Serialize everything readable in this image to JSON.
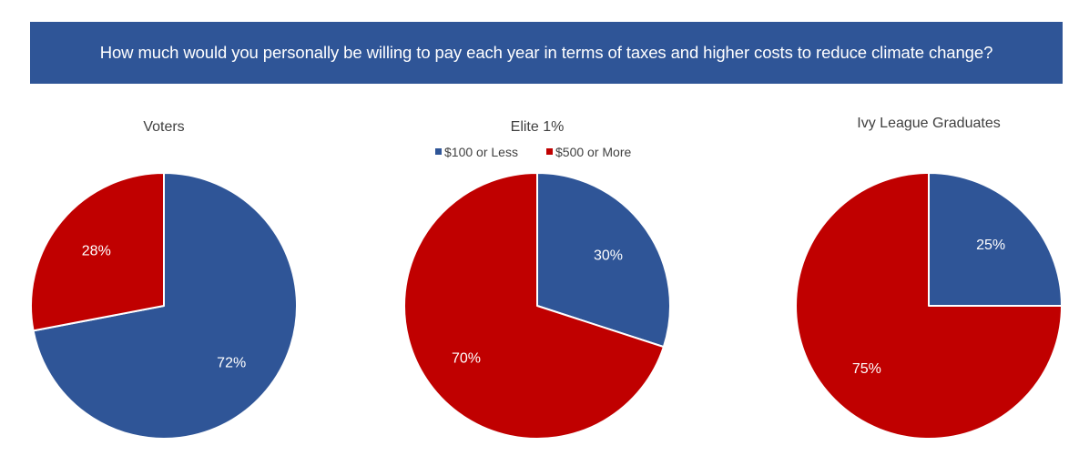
{
  "header": {
    "title": "How much would you personally be willing to pay each year in terms of taxes and higher costs to reduce climate change?"
  },
  "legend": [
    {
      "label": "$100 or Less",
      "color": "#2f5597"
    },
    {
      "label": "$500 or More",
      "color": "#c00000"
    }
  ],
  "chart_data": [
    {
      "type": "pie",
      "title": "Voters",
      "slices": [
        {
          "label": "$100 or Less",
          "value": 72,
          "display": "72%",
          "color": "#2f5597"
        },
        {
          "label": "$500 or More",
          "value": 28,
          "display": "28%",
          "color": "#c00000"
        }
      ]
    },
    {
      "type": "pie",
      "title": "Elite 1%",
      "slices": [
        {
          "label": "$100 or Less",
          "value": 30,
          "display": "30%",
          "color": "#2f5597"
        },
        {
          "label": "$500 or More",
          "value": 70,
          "display": "70%",
          "color": "#c00000"
        }
      ]
    },
    {
      "type": "pie",
      "title": "Ivy League Graduates",
      "slices": [
        {
          "label": "$100 or Less",
          "value": 25,
          "display": "25%",
          "color": "#2f5597"
        },
        {
          "label": "$500 or More",
          "value": 75,
          "display": "75%",
          "color": "#c00000"
        }
      ]
    }
  ]
}
